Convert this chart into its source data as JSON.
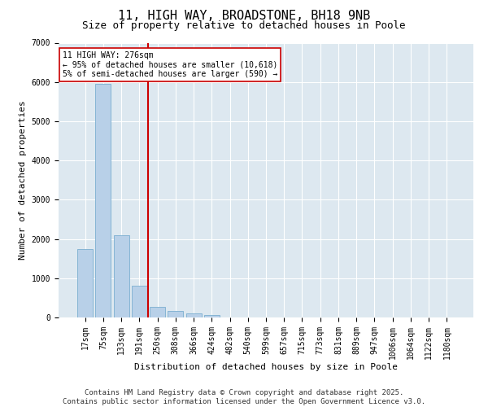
{
  "title": "11, HIGH WAY, BROADSTONE, BH18 9NB",
  "subtitle": "Size of property relative to detached houses in Poole",
  "xlabel": "Distribution of detached houses by size in Poole",
  "ylabel": "Number of detached properties",
  "categories": [
    "17sqm",
    "75sqm",
    "133sqm",
    "191sqm",
    "250sqm",
    "308sqm",
    "366sqm",
    "424sqm",
    "482sqm",
    "540sqm",
    "599sqm",
    "657sqm",
    "715sqm",
    "773sqm",
    "831sqm",
    "889sqm",
    "947sqm",
    "1006sqm",
    "1064sqm",
    "1122sqm",
    "1180sqm"
  ],
  "values": [
    1750,
    5950,
    2100,
    800,
    280,
    170,
    110,
    65,
    10,
    0,
    0,
    0,
    0,
    0,
    0,
    0,
    0,
    0,
    0,
    0,
    0
  ],
  "bar_color": "#b8d0e8",
  "bar_edge_color": "#7aaed0",
  "vline_x_index": 4,
  "vline_color": "#cc0000",
  "annotation_text": "11 HIGH WAY: 276sqm\n← 95% of detached houses are smaller (10,618)\n5% of semi-detached houses are larger (590) →",
  "annotation_box_facecolor": "#ffffff",
  "annotation_box_edgecolor": "#cc0000",
  "ylim": [
    0,
    7000
  ],
  "yticks": [
    0,
    1000,
    2000,
    3000,
    4000,
    5000,
    6000,
    7000
  ],
  "fig_facecolor": "#ffffff",
  "plot_bg_color": "#dde8f0",
  "grid_color": "#ffffff",
  "footer_line1": "Contains HM Land Registry data © Crown copyright and database right 2025.",
  "footer_line2": "Contains public sector information licensed under the Open Government Licence v3.0.",
  "title_fontsize": 11,
  "subtitle_fontsize": 9,
  "axis_label_fontsize": 8,
  "tick_fontsize": 7,
  "annotation_fontsize": 7,
  "footer_fontsize": 6.5
}
